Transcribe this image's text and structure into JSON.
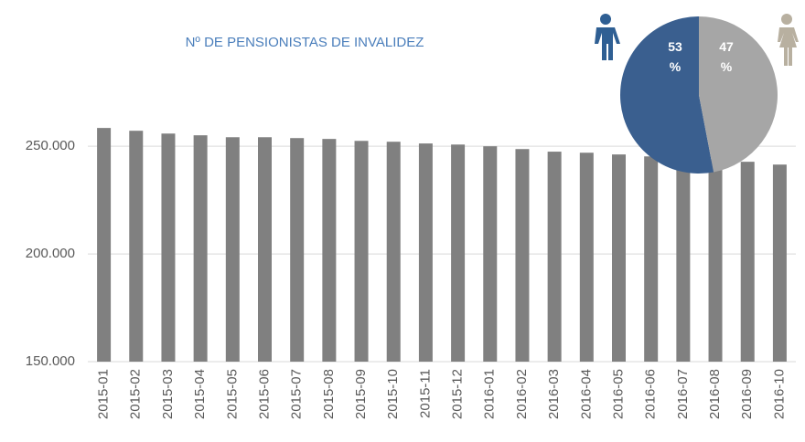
{
  "chart_data": [
    {
      "type": "bar",
      "title": "Nº DE PENSIONISTAS DE INVALIDEZ",
      "categories": [
        "2015-01",
        "2015-02",
        "2015-03",
        "2015-04",
        "2015-05",
        "2015-06",
        "2015-07",
        "2015-08",
        "2015-09",
        "2015-10",
        "2015-11",
        "2015-12",
        "2016-01",
        "2016-02",
        "2016-03",
        "2016-04",
        "2016-05",
        "2016-06",
        "2016-07",
        "2016-08",
        "2016-09",
        "2016-10"
      ],
      "values": [
        258500,
        257200,
        255900,
        255100,
        254200,
        254200,
        253800,
        253400,
        252500,
        252100,
        251300,
        250800,
        250000,
        248700,
        247500,
        247000,
        246200,
        245300,
        244500,
        243600,
        242800,
        241500
      ],
      "color": "#808080",
      "ylim": [
        150000,
        270000
      ],
      "yticks": [
        {
          "value": 150000,
          "label": "150.000"
        },
        {
          "value": 200000,
          "label": "200.000"
        },
        {
          "value": 250000,
          "label": "250.000"
        }
      ],
      "grid": true
    },
    {
      "type": "pie",
      "categories": [
        "Hombres",
        "Mujeres"
      ],
      "values": [
        53,
        47
      ],
      "value_labels": [
        "53 %",
        "47 %"
      ],
      "colors": [
        "#3a5f8f",
        "#a6a6a6"
      ]
    }
  ]
}
